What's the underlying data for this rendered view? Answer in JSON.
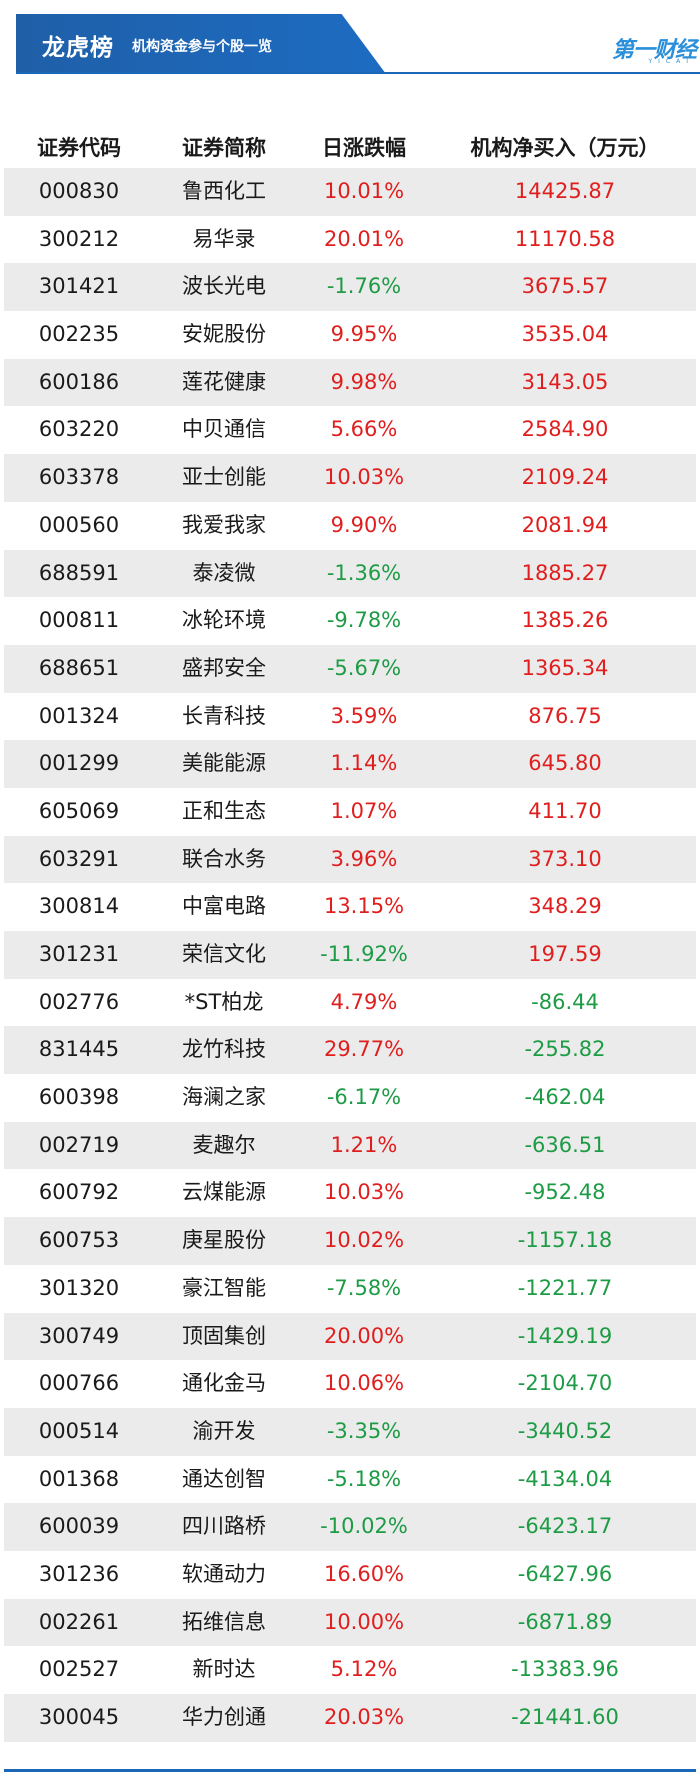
{
  "header": {
    "title": "龙虎榜",
    "subtitle": "机构资金参与个股一览",
    "logo": "第一财经",
    "logo_sub": "YICAI"
  },
  "columns": [
    "证券代码",
    "证券简称",
    "日涨跌幅",
    "机构净买入（万元）"
  ],
  "rows": [
    {
      "code": "000830",
      "name": "鲁西化工",
      "change": "10.01%",
      "net": "14425.87"
    },
    {
      "code": "300212",
      "name": "易华录",
      "change": "20.01%",
      "net": "11170.58"
    },
    {
      "code": "301421",
      "name": "波长光电",
      "change": "-1.76%",
      "net": "3675.57"
    },
    {
      "code": "002235",
      "name": "安妮股份",
      "change": "9.95%",
      "net": "3535.04"
    },
    {
      "code": "600186",
      "name": "莲花健康",
      "change": "9.98%",
      "net": "3143.05"
    },
    {
      "code": "603220",
      "name": "中贝通信",
      "change": "5.66%",
      "net": "2584.90"
    },
    {
      "code": "603378",
      "name": "亚士创能",
      "change": "10.03%",
      "net": "2109.24"
    },
    {
      "code": "000560",
      "name": "我爱我家",
      "change": "9.90%",
      "net": "2081.94"
    },
    {
      "code": "688591",
      "name": "泰凌微",
      "change": "-1.36%",
      "net": "1885.27"
    },
    {
      "code": "000811",
      "name": "冰轮环境",
      "change": "-9.78%",
      "net": "1385.26"
    },
    {
      "code": "688651",
      "name": "盛邦安全",
      "change": "-5.67%",
      "net": "1365.34"
    },
    {
      "code": "001324",
      "name": "长青科技",
      "change": "3.59%",
      "net": "876.75"
    },
    {
      "code": "001299",
      "name": "美能能源",
      "change": "1.14%",
      "net": "645.80"
    },
    {
      "code": "605069",
      "name": "正和生态",
      "change": "1.07%",
      "net": "411.70"
    },
    {
      "code": "603291",
      "name": "联合水务",
      "change": "3.96%",
      "net": "373.10"
    },
    {
      "code": "300814",
      "name": "中富电路",
      "change": "13.15%",
      "net": "348.29"
    },
    {
      "code": "301231",
      "name": "荣信文化",
      "change": "-11.92%",
      "net": "197.59"
    },
    {
      "code": "002776",
      "name": "*ST柏龙",
      "change": "4.79%",
      "net": "-86.44"
    },
    {
      "code": "831445",
      "name": "龙竹科技",
      "change": "29.77%",
      "net": "-255.82"
    },
    {
      "code": "600398",
      "name": "海澜之家",
      "change": "-6.17%",
      "net": "-462.04"
    },
    {
      "code": "002719",
      "name": "麦趣尔",
      "change": "1.21%",
      "net": "-636.51"
    },
    {
      "code": "600792",
      "name": "云煤能源",
      "change": "10.03%",
      "net": "-952.48"
    },
    {
      "code": "600753",
      "name": "庚星股份",
      "change": "10.02%",
      "net": "-1157.18"
    },
    {
      "code": "301320",
      "name": "豪江智能",
      "change": "-7.58%",
      "net": "-1221.77"
    },
    {
      "code": "300749",
      "name": "顶固集创",
      "change": "20.00%",
      "net": "-1429.19"
    },
    {
      "code": "000766",
      "name": "通化金马",
      "change": "10.06%",
      "net": "-2104.70"
    },
    {
      "code": "000514",
      "name": "渝开发",
      "change": "-3.35%",
      "net": "-3440.52"
    },
    {
      "code": "001368",
      "name": "通达创智",
      "change": "-5.18%",
      "net": "-4134.04"
    },
    {
      "code": "600039",
      "name": "四川路桥",
      "change": "-10.02%",
      "net": "-6423.17"
    },
    {
      "code": "301236",
      "name": "软通动力",
      "change": "16.60%",
      "net": "-6427.96"
    },
    {
      "code": "002261",
      "name": "拓维信息",
      "change": "10.00%",
      "net": "-6871.89"
    },
    {
      "code": "002527",
      "name": "新时达",
      "change": "5.12%",
      "net": "-13383.96"
    },
    {
      "code": "300045",
      "name": "华力创通",
      "change": "20.03%",
      "net": "-21441.60"
    }
  ],
  "colors": {
    "positive": "#e01e1e",
    "negative": "#1d9b45",
    "brand": "#1a66b8",
    "stripe": "#ebebeb"
  }
}
